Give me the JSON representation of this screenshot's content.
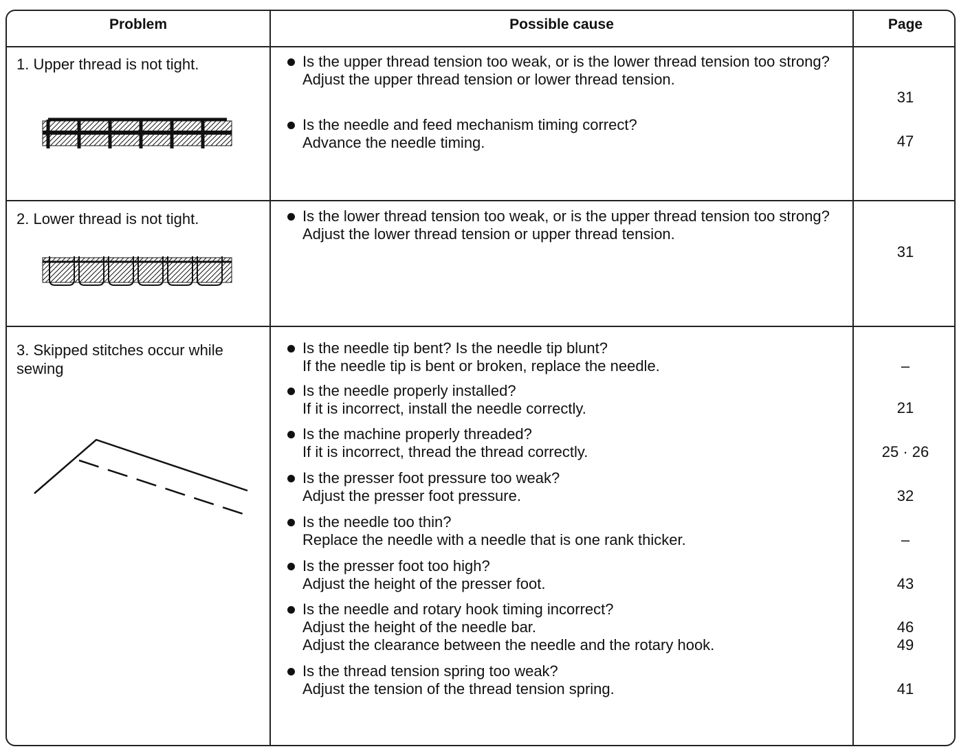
{
  "header": {
    "problem": "Problem",
    "cause": "Possible cause",
    "page": "Page"
  },
  "rows": [
    {
      "problem": "1. Upper thread is not tight.",
      "causes": [
        {
          "question": "Is the upper thread tension too weak, or is the lower thread tension too strong?",
          "actions": [
            {
              "text": "Adjust the upper thread tension or lower thread tension.",
              "page": "31"
            }
          ]
        },
        {
          "question": "Is the needle and feed mechanism timing correct?",
          "actions": [
            {
              "text": "Advance the needle timing.",
              "page": "47"
            }
          ]
        }
      ]
    },
    {
      "problem": "2. Lower thread is not tight.",
      "causes": [
        {
          "question": "Is the lower thread tension too weak, or is the upper thread tension too strong?",
          "actions": [
            {
              "text": "Adjust the lower thread tension or upper thread tension.",
              "page": "31"
            }
          ]
        }
      ]
    },
    {
      "problem": "3. Skipped stitches occur while sewing",
      "causes": [
        {
          "question": "Is the needle tip bent? Is the needle tip blunt?",
          "actions": [
            {
              "text": "If the needle tip is bent or broken, replace the needle.",
              "page": "–"
            }
          ]
        },
        {
          "question": "Is the needle properly installed?",
          "actions": [
            {
              "text": "If it is incorrect, install the needle correctly.",
              "page": "21"
            }
          ]
        },
        {
          "question": "Is the machine properly threaded?",
          "actions": [
            {
              "text": "If it is incorrect, thread the thread correctly.",
              "page": "25 · 26"
            }
          ]
        },
        {
          "question": "Is the presser foot pressure too weak?",
          "actions": [
            {
              "text": "Adjust the presser foot pressure.",
              "page": "32"
            }
          ]
        },
        {
          "question": "Is the needle too thin?",
          "actions": [
            {
              "text": "Replace the needle with a needle that is one rank thicker.",
              "page": "–"
            }
          ]
        },
        {
          "question": "Is the presser foot too high?",
          "actions": [
            {
              "text": "Adjust the height of the presser foot.",
              "page": "43"
            }
          ]
        },
        {
          "question": "Is the needle and rotary hook timing incorrect?",
          "actions": [
            {
              "text": "Adjust the height of the needle bar.",
              "page": "46"
            },
            {
              "text": "Adjust the clearance between the needle and the rotary hook.",
              "page": "49"
            }
          ]
        },
        {
          "question": "Is the thread tension spring too weak?",
          "actions": [
            {
              "text": "Adjust the tension of the thread tension spring.",
              "page": "41"
            }
          ]
        }
      ]
    }
  ]
}
